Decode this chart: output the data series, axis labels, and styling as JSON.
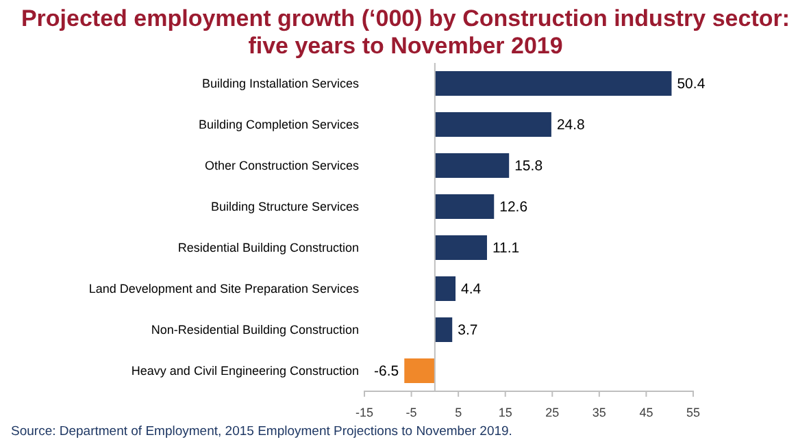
{
  "chart_data": {
    "type": "bar",
    "orientation": "horizontal",
    "title": "Projected employment growth (‘000) by Construction industry sector: five years to November 2019",
    "categories": [
      "Building Installation Services",
      "Building Completion Services",
      "Other Construction Services",
      "Building Structure Services",
      "Residential Building Construction",
      "Land Development and Site Preparation Services",
      "Non-Residential Building Construction",
      "Heavy and Civil Engineering Construction"
    ],
    "values": [
      50.4,
      24.8,
      15.8,
      12.6,
      11.1,
      4.4,
      3.7,
      -6.5
    ],
    "colors": [
      "#1f3864",
      "#1f3864",
      "#1f3864",
      "#1f3864",
      "#1f3864",
      "#1f3864",
      "#1f3864",
      "#f0882a"
    ],
    "xlim": [
      -15,
      55
    ],
    "xticks": [
      -15,
      -5,
      5,
      15,
      25,
      35,
      45,
      55
    ],
    "data_labels": true,
    "grid": false,
    "annotations": [
      "Source: Department of Employment, 2015 Employment Projections to November 2019."
    ]
  }
}
